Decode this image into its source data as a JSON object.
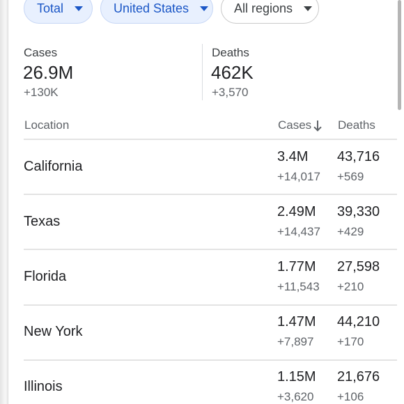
{
  "filters": [
    {
      "label": "Total",
      "selected": true
    },
    {
      "label": "United States",
      "selected": true
    },
    {
      "label": "All regions",
      "selected": false
    }
  ],
  "summary": {
    "cases": {
      "label": "Cases",
      "value": "26.9M",
      "delta": "+130K"
    },
    "deaths": {
      "label": "Deaths",
      "value": "462K",
      "delta": "+3,570"
    }
  },
  "table": {
    "headers": {
      "location": "Location",
      "cases": "Cases",
      "deaths": "Deaths"
    },
    "sort": {
      "column": "cases",
      "direction": "descending"
    },
    "rows": [
      {
        "location": "California",
        "cases": "3.4M",
        "cases_delta": "+14,017",
        "deaths": "43,716",
        "deaths_delta": "+569"
      },
      {
        "location": "Texas",
        "cases": "2.49M",
        "cases_delta": "+14,437",
        "deaths": "39,330",
        "deaths_delta": "+429"
      },
      {
        "location": "Florida",
        "cases": "1.77M",
        "cases_delta": "+11,543",
        "deaths": "27,598",
        "deaths_delta": "+210"
      },
      {
        "location": "New York",
        "cases": "1.47M",
        "cases_delta": "+7,897",
        "deaths": "44,210",
        "deaths_delta": "+170"
      },
      {
        "location": "Illinois",
        "cases": "1.15M",
        "cases_delta": "+3,620",
        "deaths": "21,676",
        "deaths_delta": "+106"
      }
    ]
  },
  "colors": {
    "chip_selected_bg": "#e8f0fe",
    "chip_selected_text": "#1a56c6",
    "divider": "#e3e3e3",
    "secondary_text": "#5f6368"
  },
  "icons": {
    "chip_caret": "caret-down-icon",
    "sort_indicator": "arrow-down-icon"
  }
}
